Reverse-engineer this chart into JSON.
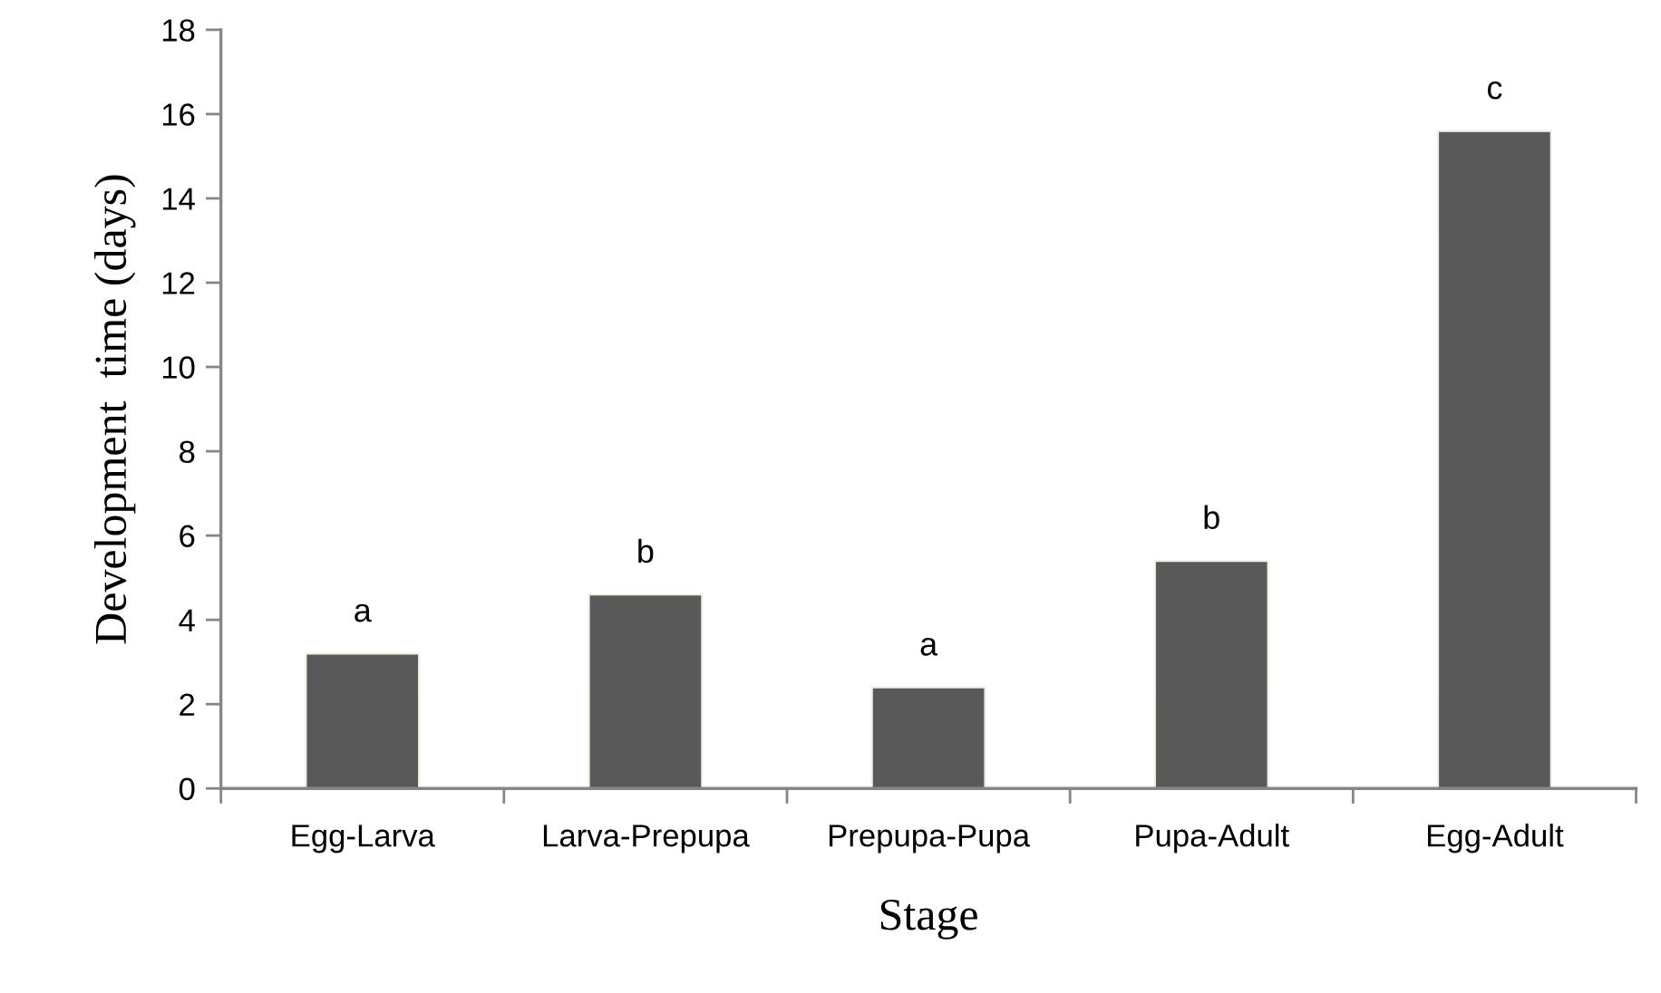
{
  "chart_data": {
    "type": "bar",
    "xlabel": "Stage",
    "ylabel": "Development  time (days)",
    "categories": [
      "Egg-Larva",
      "Larva-Prepupa",
      "Prepupa-Pupa",
      "Pupa-Adult",
      "Egg-Adult"
    ],
    "values": [
      3.2,
      4.6,
      2.4,
      5.4,
      15.6
    ],
    "color": "#595959",
    "ylim": [
      0,
      18
    ],
    "yticks": [
      0,
      2,
      4,
      6,
      8,
      10,
      12,
      14,
      16,
      18
    ],
    "annotations": [
      {
        "text": "a",
        "x": "Egg-Larva",
        "y": 3.2
      },
      {
        "text": "b",
        "x": "Larva-Prepupa",
        "y": 4.6
      },
      {
        "text": "a",
        "x": "Prepupa-Pupa",
        "y": 2.4
      },
      {
        "text": "b",
        "x": "Pupa-Adult",
        "y": 5.4
      },
      {
        "text": "c",
        "x": "Egg-Adult",
        "y": 15.6
      }
    ]
  }
}
